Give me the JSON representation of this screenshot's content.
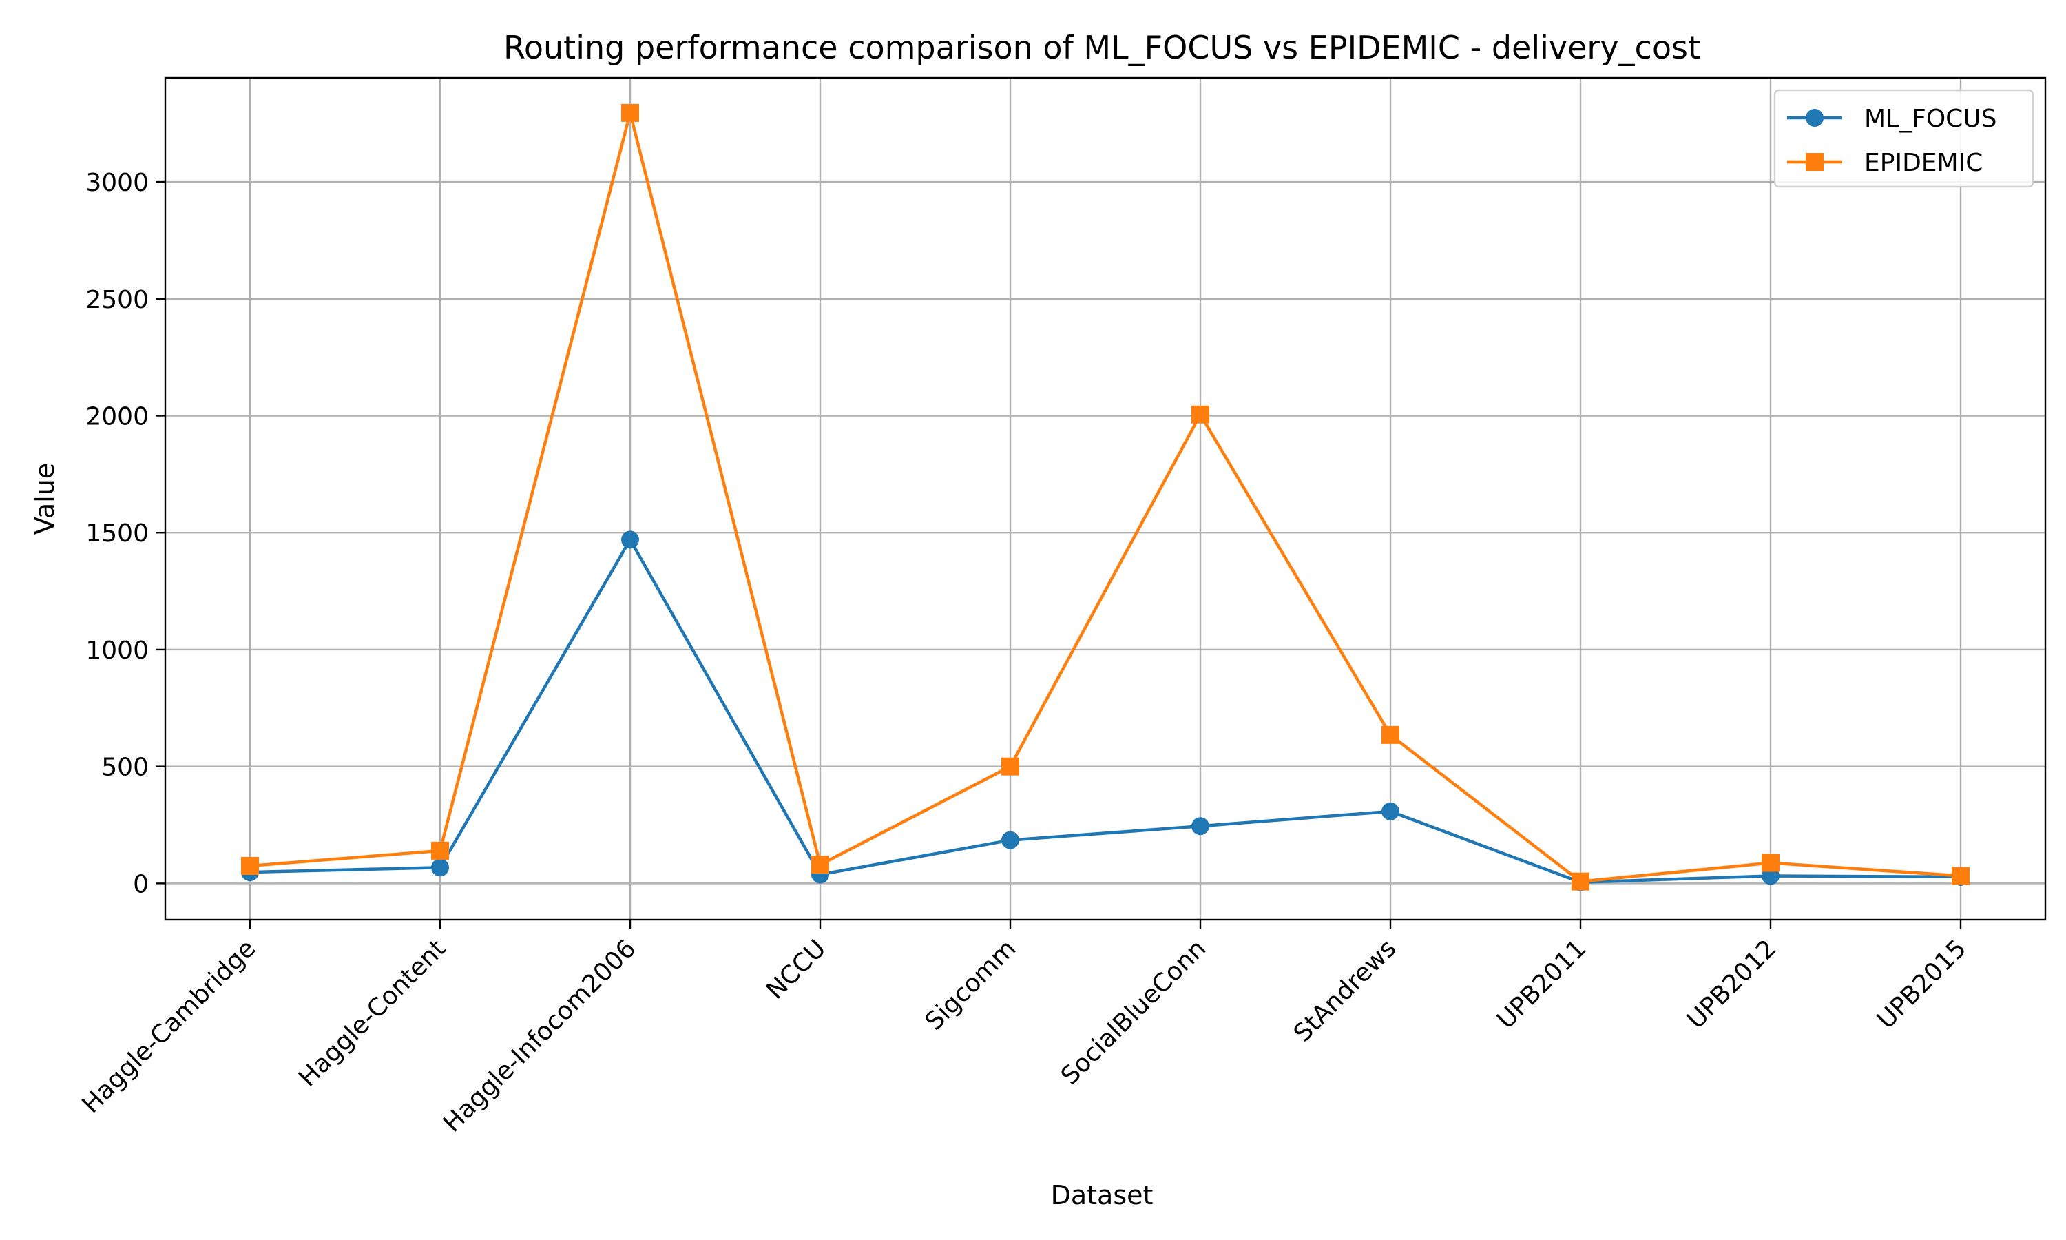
{
  "chart_data": {
    "type": "line",
    "title": "Routing performance comparison of ML_FOCUS vs EPIDEMIC - delivery_cost",
    "xlabel": "Dataset",
    "ylabel": "Value",
    "categories": [
      "Haggle-Cambridge",
      "Haggle-Content",
      "Haggle-Infocom2006",
      "NCCU",
      "Sigcomm",
      "SocialBlueConn",
      "StAndrews",
      "UPB2011",
      "UPB2012",
      "UPB2015"
    ],
    "ylim": [
      -155,
      3445
    ],
    "yticks": [
      0,
      500,
      1000,
      1500,
      2000,
      2500,
      3000
    ],
    "grid": true,
    "legend_position": "top-right",
    "series": [
      {
        "name": "ML_FOCUS",
        "color": "#1f77b4",
        "marker": "circle",
        "values": [
          48,
          68,
          1470,
          38,
          185,
          245,
          308,
          5,
          32,
          28
        ]
      },
      {
        "name": "EPIDEMIC",
        "color": "#ff7f0e",
        "marker": "square",
        "values": [
          75,
          140,
          3295,
          80,
          500,
          2005,
          635,
          8,
          88,
          32
        ]
      }
    ]
  }
}
